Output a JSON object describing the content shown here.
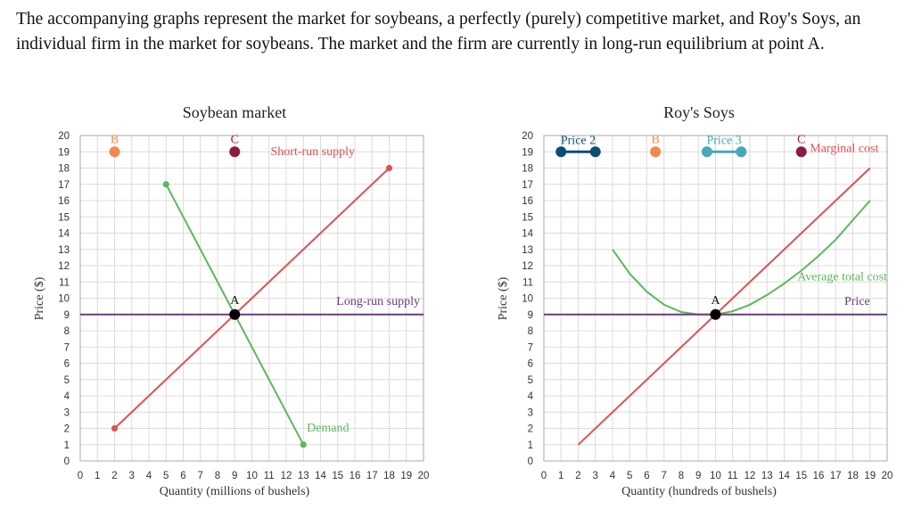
{
  "question": {
    "text": "The accompanying graphs represent the market for soybeans, a perfectly (purely) competitive market, and Roy's Soys, an individual firm in the market for soybeans. The market and the firm are currently in long-run equilibrium at point A."
  },
  "colors": {
    "red": "#e05050",
    "green": "#5cb85c",
    "purple": "#6a3d7a",
    "orange": "#f4874b",
    "maroon": "#8e1b3f",
    "navy": "#0b4e73",
    "teal": "#47a8b8",
    "black": "#000000"
  },
  "chart_data": [
    {
      "type": "line",
      "title": "Soybean market",
      "xlabel": "Quantity (millions of bushels)",
      "ylabel": "Price ($)",
      "xlim": [
        0,
        20
      ],
      "ylim": [
        0,
        20
      ],
      "x_ticks": [
        "0",
        "1",
        "2",
        "3",
        "4",
        "5",
        "6",
        "7",
        "8",
        "9",
        "10",
        "11",
        "12",
        "13",
        "14",
        "15",
        "16",
        "17",
        "18",
        "19",
        "20"
      ],
      "y_ticks": [
        "0",
        "1",
        "2",
        "3",
        "4",
        "5",
        "6",
        "7",
        "8",
        "9",
        "10",
        "11",
        "12",
        "13",
        "14",
        "15",
        "16",
        "17",
        "18",
        "19",
        "20"
      ],
      "grid": true,
      "series": [
        {
          "name": "Short-run supply",
          "color": "#e05050",
          "points": [
            [
              2,
              2
            ],
            [
              18,
              18
            ]
          ],
          "markers": true
        },
        {
          "name": "Demand",
          "color": "#5cb85c",
          "points": [
            [
              5,
              17
            ],
            [
              13,
              1
            ]
          ],
          "markers": true
        },
        {
          "name": "Long-run supply",
          "color": "#6a3d7a",
          "points": [
            [
              0,
              9
            ],
            [
              20,
              9
            ]
          ],
          "markers": false
        }
      ],
      "points": [
        {
          "name": "A",
          "x": 9,
          "y": 9,
          "color": "#000000"
        },
        {
          "name": "B",
          "x": 2,
          "y": 19,
          "color": "#f4874b"
        },
        {
          "name": "C",
          "x": 9,
          "y": 19,
          "color": "#8e1b3f"
        }
      ]
    },
    {
      "type": "line",
      "title": "Roy's Soys",
      "xlabel": "Quantity (hundreds of bushels)",
      "ylabel": "Price ($)",
      "xlim": [
        0,
        20
      ],
      "ylim": [
        0,
        20
      ],
      "x_ticks": [
        "0",
        "1",
        "2",
        "3",
        "4",
        "5",
        "6",
        "7",
        "8",
        "9",
        "10",
        "11",
        "12",
        "13",
        "14",
        "15",
        "16",
        "17",
        "18",
        "19",
        "20"
      ],
      "y_ticks": [
        "0",
        "1",
        "2",
        "3",
        "4",
        "5",
        "6",
        "7",
        "8",
        "9",
        "10",
        "11",
        "12",
        "13",
        "14",
        "15",
        "16",
        "17",
        "18",
        "19",
        "20"
      ],
      "grid": true,
      "series": [
        {
          "name": "Marginal cost",
          "color": "#e05050",
          "points": [
            [
              2,
              1
            ],
            [
              19,
              18
            ]
          ],
          "markers": false
        },
        {
          "name": "Average total cost",
          "color": "#5cb85c",
          "points": [
            [
              4,
              13
            ],
            [
              5,
              11.5
            ],
            [
              6,
              10.4
            ],
            [
              7,
              9.6
            ],
            [
              8,
              9.15
            ],
            [
              9,
              9
            ],
            [
              10,
              9
            ],
            [
              11,
              9.2
            ],
            [
              12,
              9.6
            ],
            [
              13,
              10.2
            ],
            [
              14,
              10.9
            ],
            [
              15,
              11.7
            ],
            [
              16,
              12.6
            ],
            [
              17,
              13.6
            ],
            [
              18,
              14.8
            ],
            [
              19,
              16
            ]
          ],
          "markers": false
        },
        {
          "name": "Price",
          "color": "#6a3d7a",
          "points": [
            [
              0,
              9
            ],
            [
              20,
              9
            ]
          ],
          "markers": false
        }
      ],
      "points": [
        {
          "name": "A",
          "x": 10,
          "y": 9,
          "color": "#000000"
        },
        {
          "name": "B",
          "x": 6.5,
          "y": 19,
          "color": "#f4874b"
        },
        {
          "name": "C",
          "x": 15,
          "y": 19,
          "color": "#8e1b3f"
        }
      ],
      "segments": [
        {
          "name": "Price 2",
          "color": "#0b4e73",
          "x1": 1,
          "x2": 3,
          "y": 19
        },
        {
          "name": "Price 3",
          "color": "#47a8b8",
          "x1": 9.5,
          "x2": 11.5,
          "y": 19
        }
      ]
    }
  ]
}
